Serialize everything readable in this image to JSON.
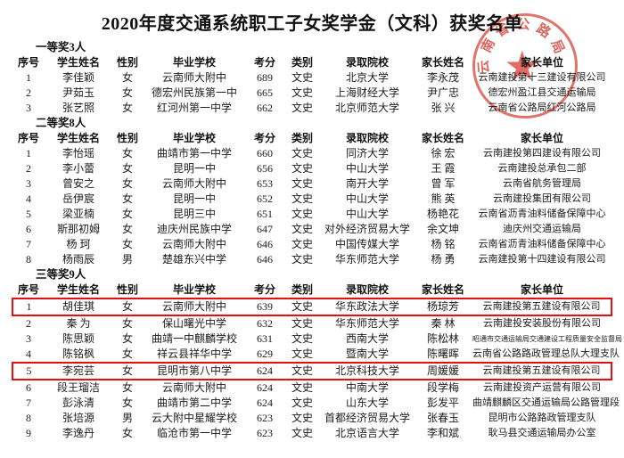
{
  "title": "2020年度交通系统职工子女奖学金（文科）获奖名单",
  "columns": [
    "序号",
    "学生姓名",
    "性别",
    "毕业学校",
    "考分",
    "类别",
    "录取院校",
    "家长姓名",
    "家长单位"
  ],
  "sections": [
    {
      "label": "一等奖3人",
      "rows": [
        {
          "cells": [
            "1",
            "李佳颖",
            "女",
            "云南师大附中",
            "689",
            "文史",
            "北京大学",
            "李永茂",
            "云南建投第十三建设有限公司"
          ],
          "highlight": false
        },
        {
          "cells": [
            "2",
            "尹茹玉",
            "女",
            "德宏州民族第一中",
            "665",
            "文史",
            "上海财经大学",
            "尹广忠",
            "德宏州盈江县交通运输局"
          ],
          "highlight": false
        },
        {
          "cells": [
            "3",
            "张艺照",
            "女",
            "红河州第一中学",
            "662",
            "文史",
            "北京师范大学",
            "张 兴",
            "云南省公路局红河公路局"
          ],
          "highlight": false
        }
      ]
    },
    {
      "label": "二等奖8人",
      "rows": [
        {
          "cells": [
            "1",
            "李怡瑶",
            "女",
            "曲靖市第一中学",
            "660",
            "文史",
            "同济大学",
            "徐 宏",
            "云南建投第四建设有限公司"
          ],
          "highlight": false
        },
        {
          "cells": [
            "2",
            "李小蕾",
            "女",
            "昆明一中",
            "656",
            "文史",
            "中山大学",
            "王 霞",
            "云南建投总承包二部"
          ],
          "highlight": false
        },
        {
          "cells": [
            "3",
            "曾安之",
            "女",
            "云南师大附中",
            "653",
            "文史",
            "南开大学",
            "曾 军",
            "云南省航务管理局"
          ],
          "highlight": false
        },
        {
          "cells": [
            "4",
            "岳伊宸",
            "女",
            "昆明一中",
            "652",
            "文史",
            "中山大学",
            "熊 英",
            "云南建投集团有限公司"
          ],
          "highlight": false
        },
        {
          "cells": [
            "5",
            "梁亚楠",
            "女",
            "昆明三中",
            "651",
            "文史",
            "中山大学",
            "杨艳花",
            "云南省沥青油料储备保障中心"
          ],
          "highlight": false
        },
        {
          "cells": [
            "6",
            "斯那初姆",
            "女",
            "迪庆州民族中学",
            "647",
            "文史",
            "对外经济贸易大学",
            "余文坤",
            "迪庆州交通运输局"
          ],
          "highlight": false
        },
        {
          "cells": [
            "7",
            "杨 珂",
            "女",
            "云南师大附中",
            "646",
            "文史",
            "中国传媒大学",
            "杨 铭",
            "云南省沥青油料储备保障中心"
          ],
          "highlight": false
        },
        {
          "cells": [
            "8",
            "杨雨辰",
            "男",
            "楚雄东兴中学",
            "646",
            "文史",
            "华东师范大学",
            "杨 勇",
            "云南建投第十四建设有限公司"
          ],
          "highlight": false
        }
      ]
    },
    {
      "label": "三等奖9人",
      "rows": [
        {
          "cells": [
            "1",
            "胡佳琪",
            "女",
            "云南师大附中",
            "639",
            "文史",
            "华东政法大学",
            "杨琼芳",
            "云南建投第五建设有限公司"
          ],
          "highlight": true
        },
        {
          "cells": [
            "2",
            "秦 为",
            "女",
            "保山曙光中学",
            "632",
            "文史",
            "华东师范大学",
            "秦 林",
            "云南建投安装股份有限公司"
          ],
          "highlight": false
        },
        {
          "cells": [
            "3",
            "陈思颖",
            "女",
            "曲靖一中麒麟学校",
            "631",
            "文史",
            "西南大学",
            "陈松林",
            "昭通市交通运输局交通建设工程质量安全监督局"
          ],
          "highlight": false
        },
        {
          "cells": [
            "4",
            "陈铭枫",
            "女",
            "祥云县祥华中学",
            "629",
            "文史",
            "暨南大学",
            "陈曙晖",
            "云南省公路路政管理总队大理支队"
          ],
          "highlight": false
        },
        {
          "cells": [
            "5",
            "李宛芸",
            "女",
            "昆明市第八中学",
            "624",
            "文史",
            "北京科技大学",
            "周媛媛",
            "云南建投第五建设有限公司"
          ],
          "highlight": true
        },
        {
          "cells": [
            "6",
            "段王瑠洁",
            "女",
            "云南师大附中",
            "624",
            "文史",
            "中南大学",
            "段学梅",
            "云南建投资产运营有限公司"
          ],
          "highlight": false
        },
        {
          "cells": [
            "7",
            "彭泳清",
            "女",
            "曲靖市第二中学",
            "624",
            "文史",
            "山东大学",
            "彭发平",
            "曲靖麒麟区交通运输局公路管理段"
          ],
          "highlight": false
        },
        {
          "cells": [
            "8",
            "张培源",
            "男",
            "云大附中星耀学校",
            "623",
            "文史",
            "首都经济贸易大学",
            "张春玉",
            "昆明市公路路政管理支队"
          ],
          "highlight": false
        },
        {
          "cells": [
            "9",
            "李逸丹",
            "女",
            "临沧市第一中学",
            "623",
            "文史",
            "北京语言大学",
            "李和斌",
            "耿马县交通运输局办公室"
          ],
          "highlight": false
        }
      ]
    }
  ],
  "seal": {
    "arc_text": "云南省公路局",
    "star_glyph": "★"
  },
  "colors": {
    "highlight_box": "#e60f0f",
    "seal_red": "#d6483c",
    "text": "#1c1c1c"
  }
}
